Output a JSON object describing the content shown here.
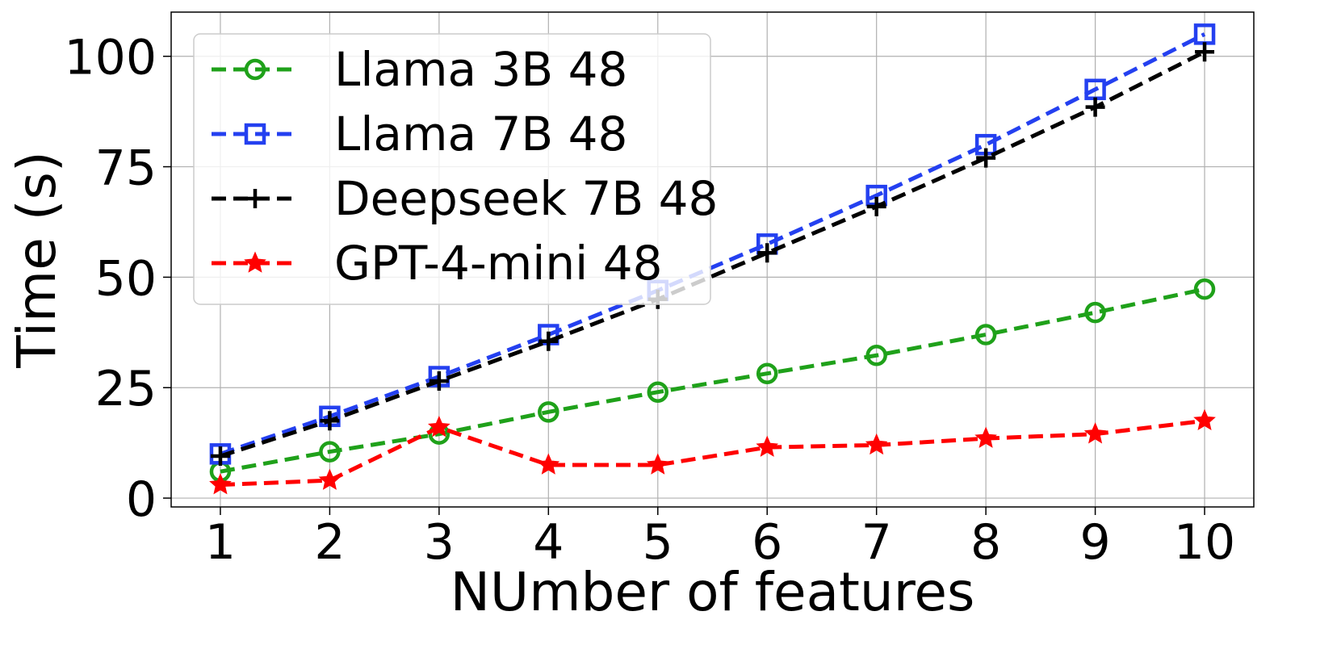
{
  "chart_data": {
    "type": "line",
    "title": "",
    "xlabel": "NUmber of features",
    "ylabel": "Time (s)",
    "x": [
      1,
      2,
      3,
      4,
      5,
      6,
      7,
      8,
      9,
      10
    ],
    "xlim": [
      0.55,
      10.45
    ],
    "ylim": [
      -2,
      110
    ],
    "xticks": [
      "1",
      "2",
      "3",
      "4",
      "5",
      "6",
      "7",
      "8",
      "9",
      "10"
    ],
    "yticks": [
      0,
      25,
      50,
      75,
      100
    ],
    "ytick_labels": [
      "0",
      "25",
      "50",
      "75",
      "100"
    ],
    "grid": true,
    "legend_position": "top-left",
    "series": [
      {
        "name": "Llama 3B 48",
        "color": "#1fa11a",
        "marker": "circle",
        "values": [
          6,
          10.5,
          14.5,
          19.5,
          24,
          28.2,
          32.3,
          37,
          42,
          47.3
        ]
      },
      {
        "name": "Llama 7B 48",
        "color": "#2440f0",
        "marker": "square",
        "values": [
          10,
          18.5,
          27.5,
          37,
          47,
          57.5,
          68.5,
          80,
          92.5,
          105
        ]
      },
      {
        "name": "Deepseek 7B 48",
        "color": "#000000",
        "marker": "plus",
        "values": [
          9.5,
          17.5,
          26.5,
          35.5,
          45,
          55.5,
          66,
          77,
          88.5,
          101
        ]
      },
      {
        "name": "GPT-4-mini 48",
        "color": "#ff0000",
        "marker": "star",
        "values": [
          3,
          4,
          16,
          7.5,
          7.5,
          11.5,
          12,
          13.5,
          14.5,
          17.5
        ]
      }
    ]
  }
}
